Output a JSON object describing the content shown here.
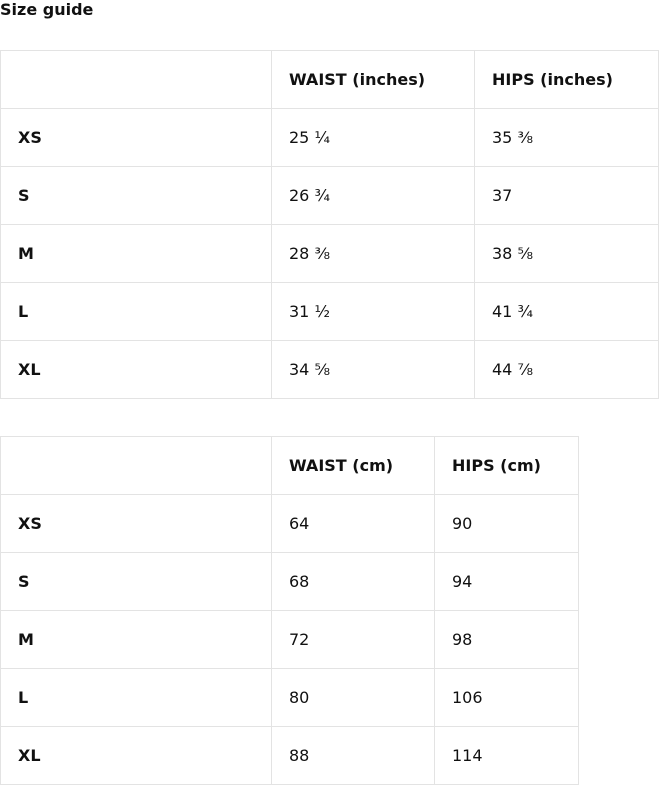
{
  "title": "Size guide",
  "tables": [
    {
      "headers": [
        "",
        "WAIST (inches)",
        "HIPS (inches)"
      ],
      "rows": [
        [
          "XS",
          "25 ¼",
          "35 ⅜"
        ],
        [
          "S",
          "26 ¾",
          "37"
        ],
        [
          "M",
          "28 ⅜",
          "38 ⅝"
        ],
        [
          "L",
          "31 ½",
          "41 ¾"
        ],
        [
          "XL",
          "34 ⅝",
          "44 ⅞"
        ]
      ]
    },
    {
      "headers": [
        "",
        "WAIST (cm)",
        "HIPS (cm)"
      ],
      "rows": [
        [
          "XS",
          "64",
          "90"
        ],
        [
          "S",
          "68",
          "94"
        ],
        [
          "M",
          "72",
          "98"
        ],
        [
          "L",
          "80",
          "106"
        ],
        [
          "XL",
          "88",
          "114"
        ]
      ]
    }
  ]
}
